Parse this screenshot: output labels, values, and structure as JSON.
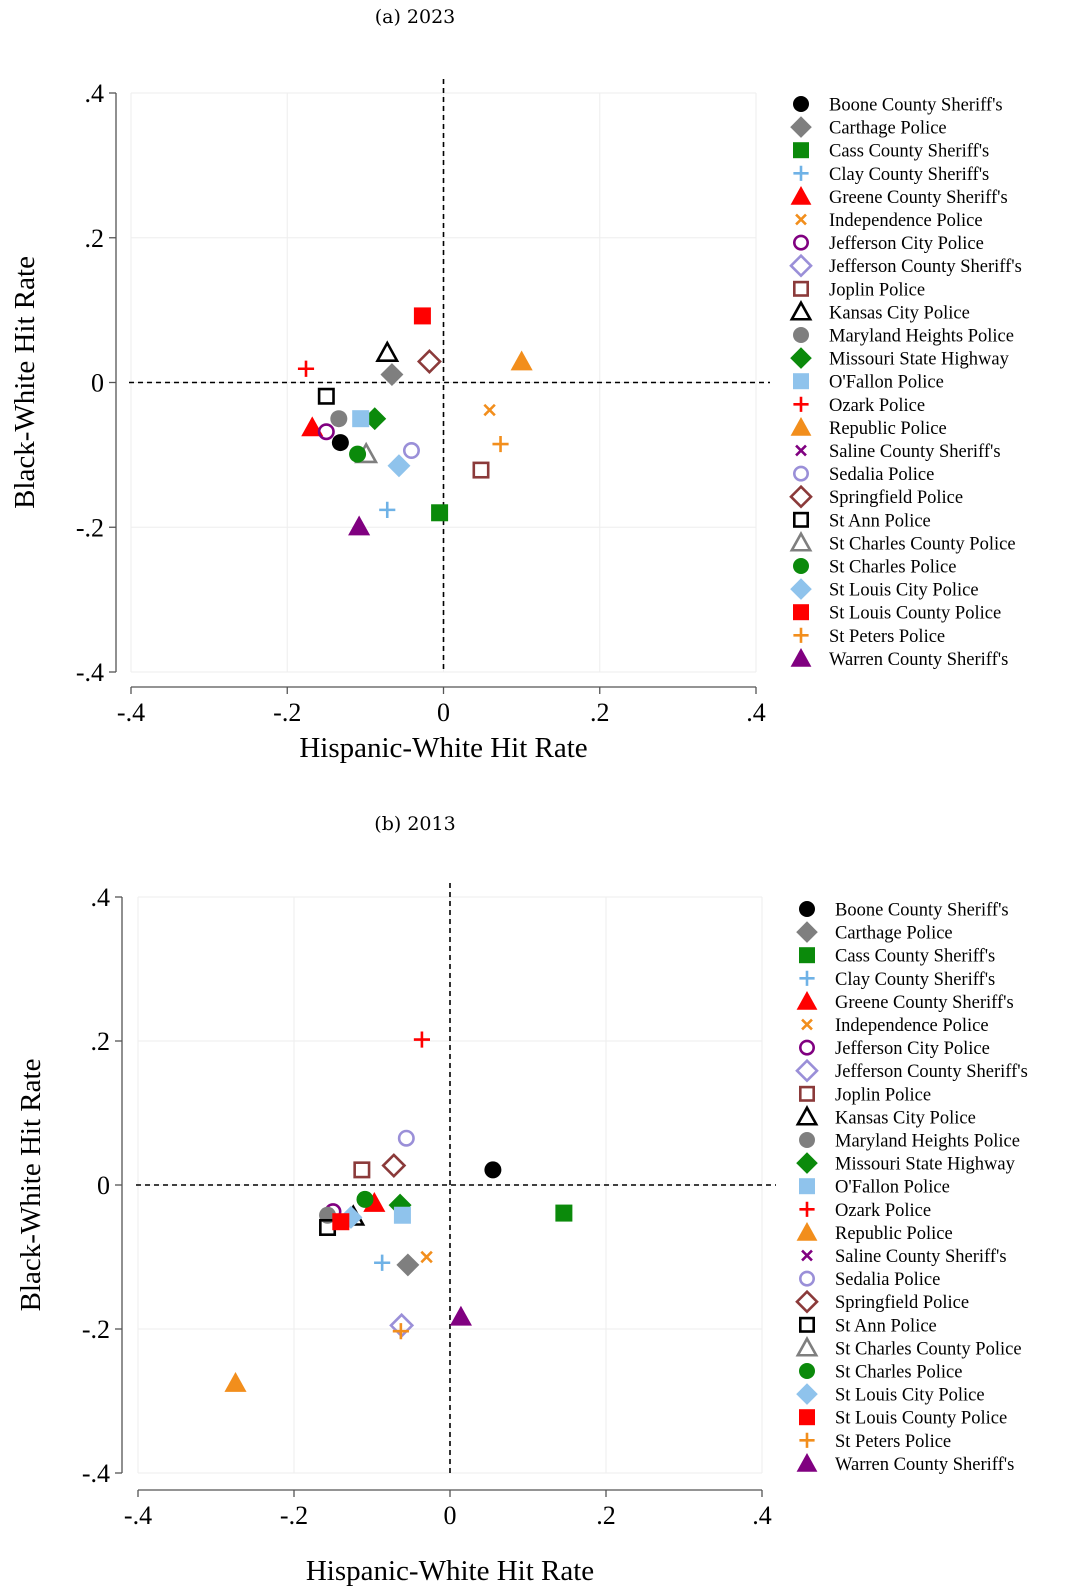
{
  "chart_data": [
    {
      "type": "scatter",
      "title": "(a) 2023",
      "xlabel": "Hispanic-White Hit Rate",
      "ylabel": "Black-White Hit Rate",
      "xlim": [
        -0.4,
        0.4
      ],
      "ylim": [
        -0.4,
        0.4
      ],
      "xticks": [
        {
          "v": -0.4,
          "label": "-.4"
        },
        {
          "v": -0.2,
          "label": "-.2"
        },
        {
          "v": 0,
          "label": "0"
        },
        {
          "v": 0.2,
          "label": ".2"
        },
        {
          "v": 0.4,
          "label": ".4"
        }
      ],
      "yticks": [
        {
          "v": 0.4,
          "label": ".4"
        },
        {
          "v": 0.2,
          "label": ".2"
        },
        {
          "v": 0,
          "label": "0"
        },
        {
          "v": -0.2,
          "label": "-.2"
        },
        {
          "v": -0.4,
          "label": "-.4"
        }
      ],
      "grid": true,
      "reference_lines": {
        "x": 0,
        "y": 0,
        "style": "dashed"
      },
      "legend_position": "right",
      "series": [
        {
          "name": "Boone County Sheriff's",
          "marker": "circle-filled",
          "color": "#000000",
          "x": [
            -0.132
          ],
          "y": [
            -0.083
          ]
        },
        {
          "name": "Carthage Police",
          "marker": "diamond-filled",
          "color": "#7f7f7f",
          "x": [
            -0.066
          ],
          "y": [
            0.011
          ]
        },
        {
          "name": "Cass County Sheriff's",
          "marker": "square-filled",
          "color": "#0b8a0b",
          "x": [
            -0.005
          ],
          "y": [
            -0.18
          ]
        },
        {
          "name": "Clay County Sheriff's",
          "marker": "plus",
          "color": "#6fb2e6",
          "x": [
            -0.072
          ],
          "y": [
            -0.176
          ]
        },
        {
          "name": "Greene County Sheriff's",
          "marker": "triangle-filled",
          "color": "#ff0000",
          "x": [
            -0.168
          ],
          "y": [
            -0.062
          ]
        },
        {
          "name": "Independence Police",
          "marker": "x",
          "color": "#f28e1c",
          "x": [
            0.059
          ],
          "y": [
            -0.038
          ]
        },
        {
          "name": "Jefferson City Police",
          "marker": "circle-open",
          "color": "#800080",
          "x": [
            -0.15
          ],
          "y": [
            -0.068
          ]
        },
        {
          "name": "Jefferson County Sheriff's",
          "marker": "diamond-open",
          "color": "#9a8fd8",
          "x": [],
          "y": []
        },
        {
          "name": "Joplin Police",
          "marker": "square-open",
          "color": "#8b3a3a",
          "x": [
            0.048
          ],
          "y": [
            -0.121
          ]
        },
        {
          "name": "Kansas City Police",
          "marker": "triangle-open",
          "color": "#000000",
          "x": [
            -0.072
          ],
          "y": [
            0.041
          ]
        },
        {
          "name": "Maryland Heights Police",
          "marker": "circle-filled",
          "color": "#7f7f7f",
          "x": [
            -0.134
          ],
          "y": [
            -0.05
          ]
        },
        {
          "name": "Missouri State Highway",
          "marker": "diamond-filled",
          "color": "#0b8a0b",
          "x": [
            -0.088
          ],
          "y": [
            -0.05
          ]
        },
        {
          "name": "O'Fallon Police",
          "marker": "square-filled",
          "color": "#8fc3ec",
          "x": [
            -0.106
          ],
          "y": [
            -0.05
          ]
        },
        {
          "name": "Ozark Police",
          "marker": "plus",
          "color": "#ff0000",
          "x": [
            -0.176
          ],
          "y": [
            0.019
          ]
        },
        {
          "name": "Republic Police",
          "marker": "triangle-filled",
          "color": "#f28e1c",
          "x": [
            0.1
          ],
          "y": [
            0.029
          ]
        },
        {
          "name": "Saline County Sheriff's",
          "marker": "x",
          "color": "#800080",
          "x": [],
          "y": []
        },
        {
          "name": "Sedalia Police",
          "marker": "circle-open",
          "color": "#9a8fd8",
          "x": [
            -0.041
          ],
          "y": [
            -0.094
          ]
        },
        {
          "name": "Springfield Police",
          "marker": "diamond-open",
          "color": "#8b3a3a",
          "x": [
            -0.018
          ],
          "y": [
            0.029
          ]
        },
        {
          "name": "St Ann Police",
          "marker": "square-open",
          "color": "#000000",
          "x": [
            -0.15
          ],
          "y": [
            -0.019
          ]
        },
        {
          "name": "St Charles County Police",
          "marker": "triangle-open",
          "color": "#7f7f7f",
          "x": [
            -0.099
          ],
          "y": [
            -0.099
          ]
        },
        {
          "name": "St Charles Police",
          "marker": "circle-filled",
          "color": "#0b8a0b",
          "x": [
            -0.11
          ],
          "y": [
            -0.099
          ]
        },
        {
          "name": "St Louis City Police",
          "marker": "diamond-filled",
          "color": "#8fc3ec",
          "x": [
            -0.057
          ],
          "y": [
            -0.115
          ]
        },
        {
          "name": "St Louis County Police",
          "marker": "square-filled",
          "color": "#ff0000",
          "x": [
            -0.027
          ],
          "y": [
            0.092
          ]
        },
        {
          "name": "St Peters Police",
          "marker": "plus",
          "color": "#f28e1c",
          "x": [
            0.073
          ],
          "y": [
            -0.085
          ]
        },
        {
          "name": "Warren County Sheriff's",
          "marker": "triangle-filled",
          "color": "#800080",
          "x": [
            -0.108
          ],
          "y": [
            -0.199
          ]
        }
      ]
    },
    {
      "type": "scatter",
      "title": "(b) 2013",
      "xlabel": "Hispanic-White Hit Rate",
      "ylabel": "Black-White Hit Rate",
      "xlim": [
        -0.4,
        0.4
      ],
      "ylim": [
        -0.4,
        0.4
      ],
      "xticks": [
        {
          "v": -0.4,
          "label": "-.4"
        },
        {
          "v": -0.2,
          "label": "-.2"
        },
        {
          "v": 0,
          "label": "0"
        },
        {
          "v": 0.2,
          "label": ".2"
        },
        {
          "v": 0.4,
          "label": ".4"
        }
      ],
      "yticks": [
        {
          "v": 0.4,
          "label": ".4"
        },
        {
          "v": 0.2,
          "label": ".2"
        },
        {
          "v": 0,
          "label": "0"
        },
        {
          "v": -0.2,
          "label": "-.2"
        },
        {
          "v": -0.4,
          "label": "-.4"
        }
      ],
      "grid": true,
      "reference_lines": {
        "x": 0,
        "y": 0,
        "style": "dashed"
      },
      "legend_position": "right",
      "series": [
        {
          "name": "Boone County Sheriff's",
          "marker": "circle-filled",
          "color": "#000000",
          "x": [
            0.055
          ],
          "y": [
            0.021
          ]
        },
        {
          "name": "Carthage Police",
          "marker": "diamond-filled",
          "color": "#7f7f7f",
          "x": [
            -0.054
          ],
          "y": [
            -0.111
          ]
        },
        {
          "name": "Cass County Sheriff's",
          "marker": "square-filled",
          "color": "#0b8a0b",
          "x": [
            0.146
          ],
          "y": [
            -0.039
          ]
        },
        {
          "name": "Clay County Sheriff's",
          "marker": "plus",
          "color": "#6fb2e6",
          "x": [
            -0.087
          ],
          "y": [
            -0.108
          ]
        },
        {
          "name": "Greene County Sheriff's",
          "marker": "triangle-filled",
          "color": "#ff0000",
          "x": [
            -0.097
          ],
          "y": [
            -0.025
          ]
        },
        {
          "name": "Independence Police",
          "marker": "x",
          "color": "#f28e1c",
          "x": [
            -0.03
          ],
          "y": [
            -0.1
          ]
        },
        {
          "name": "Jefferson City Police",
          "marker": "circle-open",
          "color": "#800080",
          "x": [
            -0.15
          ],
          "y": [
            -0.037
          ]
        },
        {
          "name": "Jefferson County Sheriff's",
          "marker": "diamond-open",
          "color": "#9a8fd8",
          "x": [
            -0.062
          ],
          "y": [
            -0.195
          ]
        },
        {
          "name": "Joplin Police",
          "marker": "square-open",
          "color": "#8b3a3a",
          "x": [
            -0.113
          ],
          "y": [
            0.021
          ]
        },
        {
          "name": "Kansas City Police",
          "marker": "triangle-open",
          "color": "#000000",
          "x": [
            -0.124
          ],
          "y": [
            -0.044
          ]
        },
        {
          "name": "Maryland Heights Police",
          "marker": "circle-filled",
          "color": "#7f7f7f",
          "x": [
            -0.157
          ],
          "y": [
            -0.042
          ]
        },
        {
          "name": "Missouri State Highway",
          "marker": "diamond-filled",
          "color": "#0b8a0b",
          "x": [
            -0.064
          ],
          "y": [
            -0.028
          ]
        },
        {
          "name": "O'Fallon Police",
          "marker": "square-filled",
          "color": "#8fc3ec",
          "x": [
            -0.061
          ],
          "y": [
            -0.042
          ]
        },
        {
          "name": "Ozark Police",
          "marker": "plus",
          "color": "#ff0000",
          "x": [
            -0.036
          ],
          "y": [
            0.202
          ]
        },
        {
          "name": "Republic Police",
          "marker": "triangle-filled",
          "color": "#f28e1c",
          "x": [
            -0.275
          ],
          "y": [
            -0.275
          ]
        },
        {
          "name": "Saline County Sheriff's",
          "marker": "x",
          "color": "#800080",
          "x": [],
          "y": []
        },
        {
          "name": "Sedalia Police",
          "marker": "circle-open",
          "color": "#9a8fd8",
          "x": [
            -0.056
          ],
          "y": [
            0.065
          ]
        },
        {
          "name": "Springfield Police",
          "marker": "diamond-open",
          "color": "#8b3a3a",
          "x": [
            -0.072
          ],
          "y": [
            0.027
          ]
        },
        {
          "name": "St Ann Police",
          "marker": "square-open",
          "color": "#000000",
          "x": [
            -0.157
          ],
          "y": [
            -0.059
          ]
        },
        {
          "name": "St Charles County Police",
          "marker": "triangle-open",
          "color": "#7f7f7f",
          "x": [],
          "y": []
        },
        {
          "name": "St Charles Police",
          "marker": "circle-filled",
          "color": "#0b8a0b",
          "x": [
            -0.109
          ],
          "y": [
            -0.02
          ]
        },
        {
          "name": "St Louis City Police",
          "marker": "diamond-filled",
          "color": "#8fc3ec",
          "x": [
            -0.127
          ],
          "y": [
            -0.045
          ]
        },
        {
          "name": "St Louis County Police",
          "marker": "square-filled",
          "color": "#ff0000",
          "x": [
            -0.14
          ],
          "y": [
            -0.051
          ]
        },
        {
          "name": "St Peters Police",
          "marker": "plus",
          "color": "#f28e1c",
          "x": [
            -0.063
          ],
          "y": [
            -0.203
          ]
        },
        {
          "name": "Warren County Sheriff's",
          "marker": "triangle-filled",
          "color": "#800080",
          "x": [
            0.014
          ],
          "y": [
            -0.183
          ]
        }
      ]
    }
  ]
}
